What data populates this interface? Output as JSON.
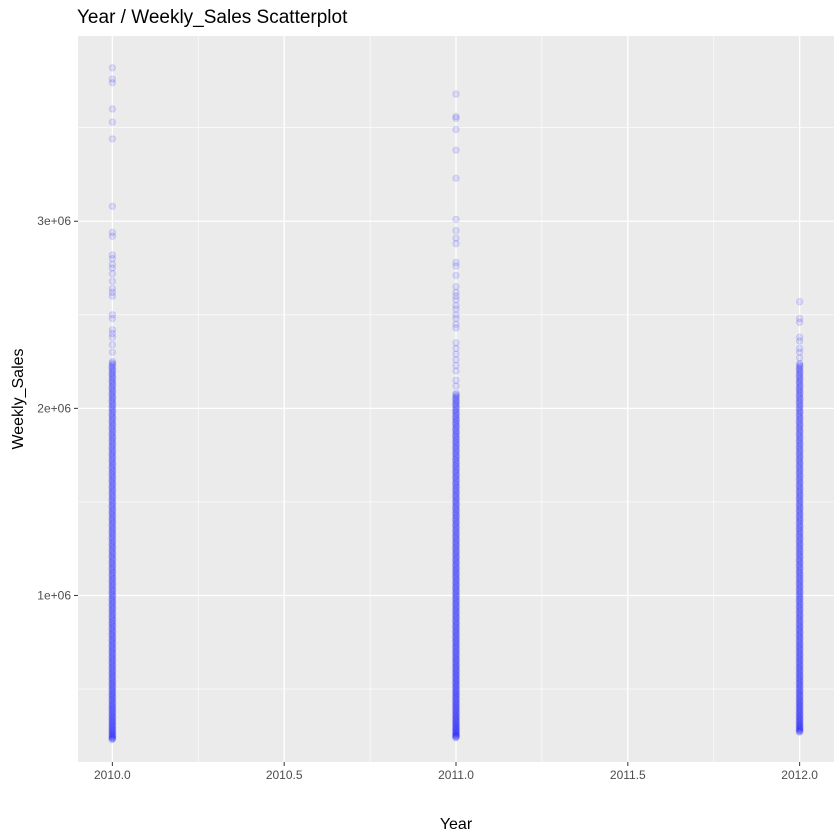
{
  "chart_data": {
    "type": "scatter",
    "title": "Year / Weekly_Sales Scatterplot",
    "xlabel": "Year",
    "ylabel": "Weekly_Sales",
    "xlim": [
      2009.9,
      2012.1
    ],
    "ylim": [
      110000,
      3990000
    ],
    "x_ticks": [
      2010.0,
      2010.5,
      2011.0,
      2011.5,
      2012.0
    ],
    "x_tick_labels": [
      "2010.0",
      "2010.5",
      "2011.0",
      "2011.5",
      "2012.0"
    ],
    "y_ticks": [
      1000000,
      2000000,
      3000000
    ],
    "y_tick_labels": [
      "1e+06",
      "2e+06",
      "3e+06"
    ],
    "grid": true,
    "legend": "none",
    "point_color": "#0000ff",
    "point_alpha": 0.1,
    "series": [
      {
        "x": 2010,
        "dense_range": [
          230000,
          2250000
        ],
        "outliers": [
          3820000,
          3760000,
          3740000,
          3600000,
          3530000,
          3440000,
          3080000,
          2940000,
          2920000,
          2820000,
          2800000,
          2770000,
          2750000,
          2720000,
          2680000,
          2640000,
          2620000,
          2600000,
          2500000,
          2480000,
          2420000,
          2400000,
          2380000,
          2340000,
          2300000
        ]
      },
      {
        "x": 2011,
        "dense_range": [
          240000,
          2080000
        ],
        "outliers": [
          3680000,
          3560000,
          3550000,
          3490000,
          3380000,
          3230000,
          3010000,
          2950000,
          2910000,
          2880000,
          2780000,
          2760000,
          2710000,
          2650000,
          2620000,
          2600000,
          2580000,
          2550000,
          2530000,
          2500000,
          2480000,
          2450000,
          2430000,
          2350000,
          2320000,
          2290000,
          2260000,
          2230000,
          2200000,
          2150000,
          2120000
        ]
      },
      {
        "x": 2012,
        "dense_range": [
          270000,
          2240000
        ],
        "outliers": [
          2570000,
          2480000,
          2460000,
          2380000,
          2360000,
          2320000,
          2300000,
          2270000
        ]
      }
    ]
  }
}
